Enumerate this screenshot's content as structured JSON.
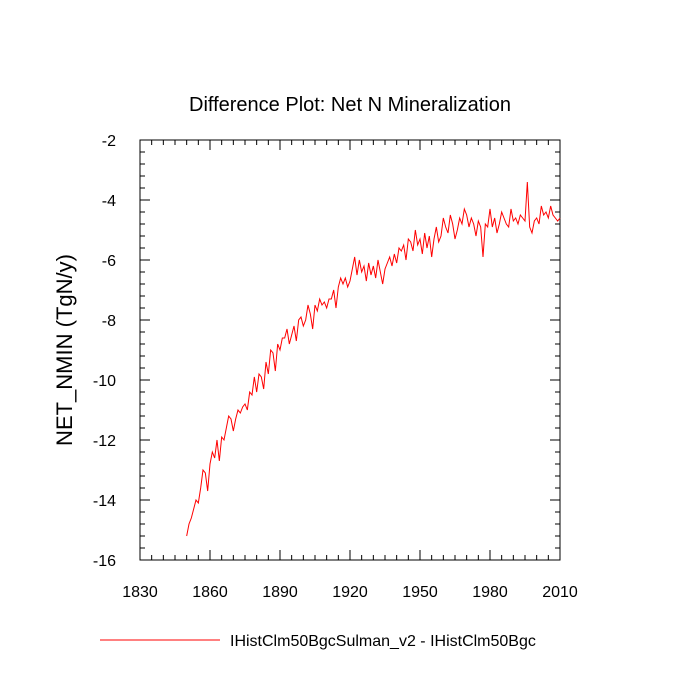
{
  "chart_data": {
    "type": "line",
    "title": "Difference Plot: Net N Mineralization",
    "y_label": "NET_NMIN  (TgN/y)",
    "x": [
      1850,
      1851,
      1852,
      1853,
      1854,
      1855,
      1856,
      1857,
      1858,
      1859,
      1860,
      1861,
      1862,
      1863,
      1864,
      1865,
      1866,
      1867,
      1868,
      1869,
      1870,
      1871,
      1872,
      1873,
      1874,
      1875,
      1876,
      1877,
      1878,
      1879,
      1880,
      1881,
      1882,
      1883,
      1884,
      1885,
      1886,
      1887,
      1888,
      1889,
      1890,
      1891,
      1892,
      1893,
      1894,
      1895,
      1896,
      1897,
      1898,
      1899,
      1900,
      1901,
      1902,
      1903,
      1904,
      1905,
      1906,
      1907,
      1908,
      1909,
      1910,
      1911,
      1912,
      1913,
      1914,
      1915,
      1916,
      1917,
      1918,
      1919,
      1920,
      1921,
      1922,
      1923,
      1924,
      1925,
      1926,
      1927,
      1928,
      1929,
      1930,
      1931,
      1932,
      1933,
      1934,
      1935,
      1936,
      1937,
      1938,
      1939,
      1940,
      1941,
      1942,
      1943,
      1944,
      1945,
      1946,
      1947,
      1948,
      1949,
      1950,
      1951,
      1952,
      1953,
      1954,
      1955,
      1956,
      1957,
      1958,
      1959,
      1960,
      1961,
      1962,
      1963,
      1964,
      1965,
      1966,
      1967,
      1968,
      1969,
      1970,
      1971,
      1972,
      1973,
      1974,
      1975,
      1976,
      1977,
      1978,
      1979,
      1980,
      1981,
      1982,
      1983,
      1984,
      1985,
      1986,
      1987,
      1988,
      1989,
      1990,
      1991,
      1992,
      1993,
      1994,
      1995,
      1996,
      1997,
      1998,
      1999,
      2000,
      2001,
      2002,
      2003,
      2004,
      2005,
      2006,
      2007,
      2008,
      2009,
      2010
    ],
    "series": [
      {
        "name": "IHistClm50BgcSulman_v2 - IHistClm50Bgc",
        "color": "#ff0000",
        "values": [
          -15.2,
          -14.8,
          -14.6,
          -14.3,
          -14.0,
          -14.1,
          -13.6,
          -13.0,
          -13.1,
          -13.7,
          -12.8,
          -12.4,
          -12.6,
          -12.0,
          -12.7,
          -11.9,
          -12.0,
          -11.6,
          -11.2,
          -11.3,
          -11.7,
          -11.3,
          -11.0,
          -11.1,
          -10.9,
          -10.8,
          -11.0,
          -10.4,
          -10.5,
          -9.9,
          -10.4,
          -9.8,
          -9.9,
          -10.3,
          -9.4,
          -9.8,
          -9.0,
          -9.1,
          -9.7,
          -8.8,
          -9.0,
          -8.6,
          -8.6,
          -8.3,
          -8.8,
          -8.5,
          -8.2,
          -8.7,
          -8.0,
          -7.9,
          -8.2,
          -8.0,
          -7.5,
          -7.8,
          -8.3,
          -7.5,
          -7.7,
          -7.3,
          -7.5,
          -7.4,
          -7.6,
          -7.3,
          -7.3,
          -7.0,
          -7.6,
          -6.9,
          -6.6,
          -6.8,
          -6.6,
          -6.9,
          -6.7,
          -6.3,
          -5.9,
          -6.5,
          -6.0,
          -6.4,
          -6.2,
          -6.7,
          -6.1,
          -6.5,
          -6.2,
          -6.6,
          -6.0,
          -6.4,
          -6.8,
          -6.3,
          -6.1,
          -5.9,
          -6.2,
          -5.8,
          -6.1,
          -5.6,
          -5.7,
          -5.5,
          -6.0,
          -5.3,
          -5.4,
          -5.7,
          -5.0,
          -5.5,
          -5.3,
          -5.8,
          -5.1,
          -5.6,
          -5.2,
          -5.9,
          -5.3,
          -4.9,
          -5.4,
          -5.2,
          -4.6,
          -4.9,
          -5.1,
          -4.5,
          -4.8,
          -5.3,
          -5.0,
          -4.6,
          -4.8,
          -4.3,
          -4.5,
          -4.9,
          -4.6,
          -4.8,
          -5.2,
          -4.7,
          -4.9,
          -5.9,
          -4.8,
          -4.9,
          -4.3,
          -4.9,
          -4.6,
          -5.1,
          -4.8,
          -4.4,
          -4.6,
          -4.8,
          -4.9,
          -4.3,
          -4.7,
          -4.6,
          -4.8,
          -4.5,
          -4.6,
          -4.7,
          -3.4,
          -4.9,
          -5.1,
          -4.7,
          -4.6,
          -4.8,
          -4.2,
          -4.5,
          -4.4,
          -4.6,
          -4.2,
          -4.5,
          -4.6,
          -4.7,
          -4.6
        ]
      }
    ],
    "xlim": [
      1830,
      2010
    ],
    "xticks": [
      1830,
      1860,
      1890,
      1920,
      1950,
      1980,
      2010
    ],
    "ylim": [
      -16,
      -2
    ],
    "yticks": [
      -16,
      -14,
      -12,
      -10,
      -8,
      -6,
      -4,
      -2
    ]
  }
}
